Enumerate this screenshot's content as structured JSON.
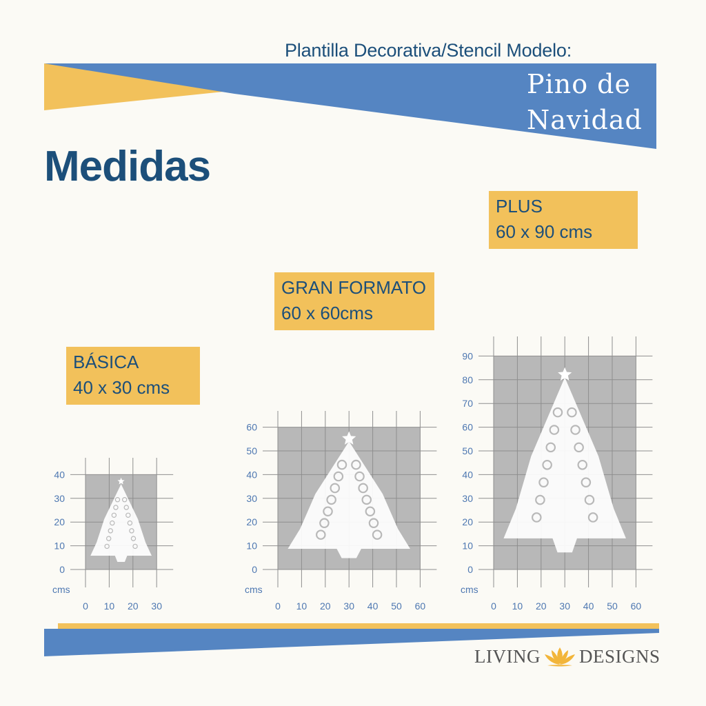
{
  "header": {
    "subtitle": "Plantilla Decorativa/Stencil Modelo:",
    "product_line1": "Pino de",
    "product_line2": "Navidad"
  },
  "heading": "Medidas",
  "sizes": [
    {
      "name": "BÁSICA",
      "dims": "40 x 30 cms"
    },
    {
      "name": "GRAN FORMATO",
      "dims": "60 x 60cms"
    },
    {
      "name": "PLUS",
      "dims": "60 x 90 cms"
    }
  ],
  "axis_unit": "cms",
  "charts": [
    {
      "width": 30,
      "height": 40,
      "x_ticks": [
        "0",
        "10",
        "20",
        "30"
      ],
      "y_ticks": [
        "0",
        "10",
        "20",
        "30",
        "40"
      ]
    },
    {
      "width": 60,
      "height": 60,
      "x_ticks": [
        "0",
        "10",
        "20",
        "30",
        "40",
        "50",
        "60"
      ],
      "y_ticks": [
        "0",
        "10",
        "20",
        "30",
        "40",
        "50",
        "60"
      ]
    },
    {
      "width": 60,
      "height": 90,
      "x_ticks": [
        "0",
        "10",
        "20",
        "30",
        "40",
        "50",
        "60"
      ],
      "y_ticks": [
        "0",
        "10",
        "20",
        "30",
        "40",
        "50",
        "60",
        "70",
        "80",
        "90"
      ]
    }
  ],
  "brand": {
    "left": "LIVING",
    "right": "DESIGNS",
    "icon": "lotus-icon"
  },
  "colors": {
    "blue": "#5585c2",
    "yellow": "#f2c15b",
    "navy": "#1c4f7a",
    "gray": "#b8b8b8"
  }
}
